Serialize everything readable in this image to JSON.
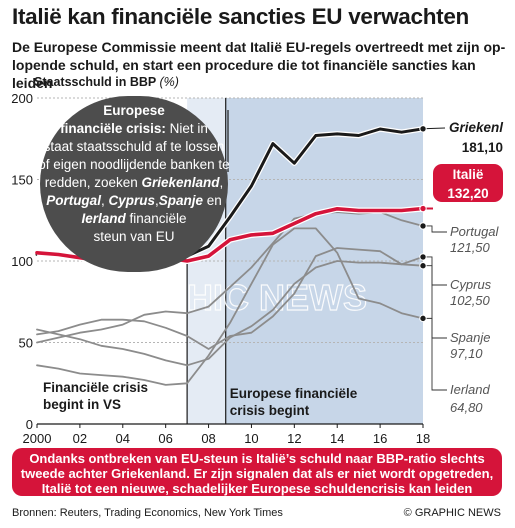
{
  "header": {
    "title": "Italië kan financiële sancties EU verwachten",
    "subtitle": "De Europese Commissie meent dat Italië EU-regels overtreedt met zijn op-lopende schuld, en start een procedure die tot financiële sancties kan leiden"
  },
  "footer": {
    "note": "Ondanks ontbreken van EU-steun is Italië’s schuld naar BBP-ratio slechts tweede achter Griekenland. Er zijn signalen dat als er niet wordt opgetreden, Italië tot een nieuwe, schadelijker Europese schuldencrisis kan leiden",
    "source": "Bronnen: Reuters, Trading Economics, New York Times",
    "credit": "© GRAPHIC NEWS"
  },
  "watermark": "GRAPHIC NEWS",
  "colors": {
    "italy": "#d5143a",
    "greece": "#1a1a1a",
    "others": "#8c8c8c",
    "shade_left": "#e4ebf4",
    "shade_right": "#c7d6e8",
    "bubble": "#4d4d4d"
  },
  "chart_data": {
    "type": "line",
    "title": "Staatsschuld in BBP",
    "ylabel": "Staatsschuld in BBP",
    "yunit": "(%)",
    "x": [
      2000,
      2001,
      2002,
      2003,
      2004,
      2005,
      2006,
      2007,
      2008,
      2009,
      2010,
      2011,
      2012,
      2013,
      2014,
      2015,
      2016,
      2017,
      2018
    ],
    "xticks": [
      "2000",
      "02",
      "04",
      "06",
      "08",
      "10",
      "12",
      "14",
      "16",
      "18"
    ],
    "xtick_values": [
      2000,
      2002,
      2004,
      2006,
      2008,
      2010,
      2012,
      2014,
      2016,
      2018
    ],
    "ylim": [
      0,
      200
    ],
    "yticks": [
      "0",
      "50",
      "100",
      "150",
      "200"
    ],
    "ytick_values": [
      0,
      50,
      100,
      150,
      200
    ],
    "grid": true,
    "series": [
      {
        "name": "Griekenl",
        "label": "181,10",
        "key": "greece",
        "values": [
          104,
          104,
          102,
          98,
          100,
          107,
          104,
          103,
          109,
          127,
          146,
          172,
          160,
          177,
          178,
          177,
          181,
          179,
          181.1
        ]
      },
      {
        "name": "Italië",
        "label": "132,20",
        "key": "italy",
        "values": [
          105,
          104,
          102,
          100,
          100,
          102,
          102,
          100,
          103,
          113,
          116,
          117,
          123,
          129,
          132,
          131,
          131,
          131,
          132.2
        ]
      },
      {
        "name": "Portugal",
        "label": "121,50",
        "key": "others",
        "values": [
          50,
          53,
          56,
          58,
          61,
          67,
          69,
          68,
          72,
          84,
          96,
          111,
          126,
          129,
          130,
          129,
          130,
          125,
          121.5
        ]
      },
      {
        "name": "Cyprus",
        "label": "102,50",
        "key": "others",
        "values": [
          55,
          57,
          61,
          64,
          64,
          63,
          59,
          54,
          46,
          54,
          56,
          66,
          80,
          103,
          108,
          107,
          106,
          98,
          102.5
        ]
      },
      {
        "name": "Spanje",
        "label": "97,10",
        "key": "others",
        "values": [
          58,
          55,
          52,
          48,
          46,
          43,
          39,
          36,
          40,
          53,
          60,
          70,
          86,
          96,
          100,
          99,
          99,
          98,
          97.1
        ]
      },
      {
        "name": "Ierland",
        "label": "64,80",
        "key": "others",
        "values": [
          36,
          34,
          31,
          30,
          29,
          27,
          24,
          25,
          42,
          62,
          86,
          110,
          120,
          120,
          105,
          77,
          74,
          68,
          64.8
        ]
      }
    ],
    "regions": [
      {
        "label": "Financiële crisis begint in VS",
        "from": 2007,
        "to": 2008.8
      },
      {
        "label": "Europese financiële crisis begint",
        "from": 2008.8,
        "to": 2018
      }
    ],
    "annotation": {
      "lead": "Europese financiële crisis:",
      "text_1": "Niet in staat staatsschuld af te lossen of eigen noodlijdende banken te redden, zoeken",
      "countries": [
        "Griekenland",
        "Portugal",
        "Cyprus",
        "Spanje",
        "Ierland"
      ],
      "text_2": "financiële steun van EU",
      "sep_1": ",",
      "sep_2": ",",
      "sep_3": ",",
      "sep_4": "en"
    }
  }
}
